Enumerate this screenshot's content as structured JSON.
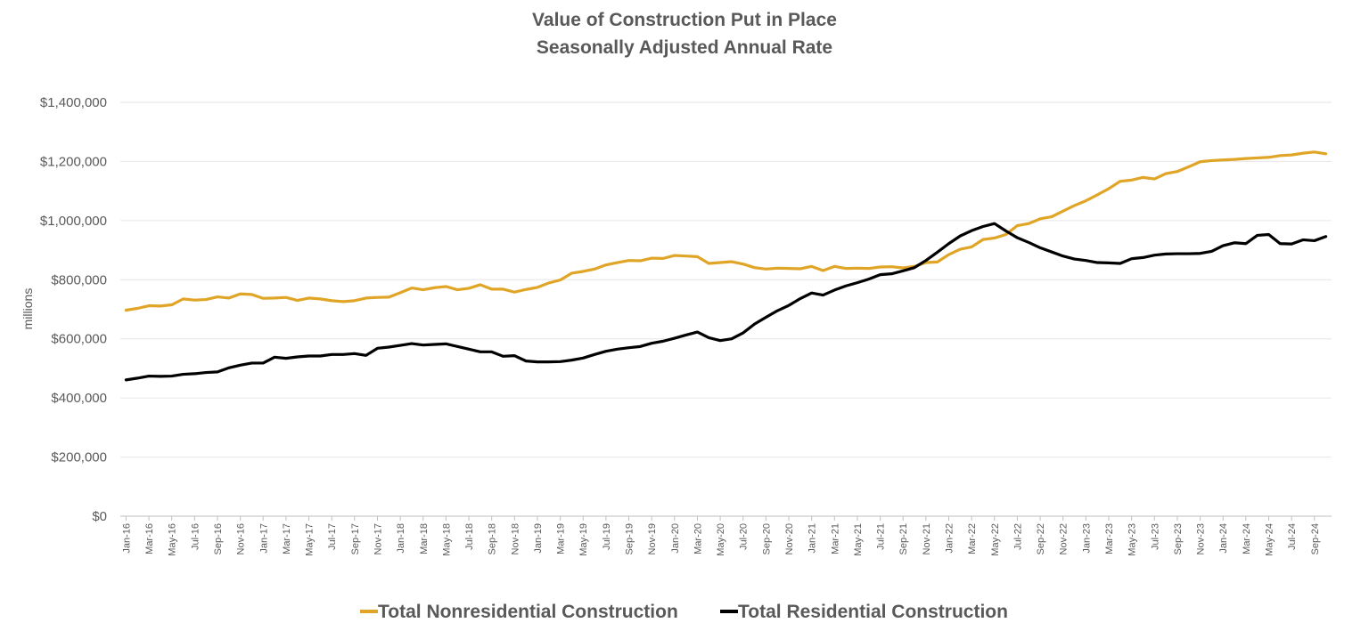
{
  "chart_data": {
    "type": "line",
    "title": "Value of Construction Put in Place",
    "subtitle": "Seasonally Adjusted Annual Rate",
    "ylabel": "millions",
    "ylim": [
      0,
      1400000
    ],
    "yticks": [
      0,
      200000,
      400000,
      600000,
      800000,
      1000000,
      1200000,
      1400000
    ],
    "ytick_labels": [
      "$0",
      "$200,000",
      "$400,000",
      "$600,000",
      "$800,000",
      "$1,000,000",
      "$1,200,000",
      "$1,400,000"
    ],
    "grid": true,
    "legend_position": "bottom",
    "x_start": "Jan-16",
    "x_tick_labels": [
      "Jan-16",
      "Mar-16",
      "May-16",
      "Jul-16",
      "Sep-16",
      "Nov-16",
      "Jan-17",
      "Mar-17",
      "May-17",
      "Jul-17",
      "Sep-17",
      "Nov-17",
      "Jan-18",
      "Mar-18",
      "May-18",
      "Jul-18",
      "Sep-18",
      "Nov-18",
      "Jan-19",
      "Mar-19",
      "May-19",
      "Jul-19",
      "Sep-19",
      "Nov-19",
      "Jan-20",
      "Mar-20",
      "May-20",
      "Jul-20",
      "Sep-20",
      "Nov-20",
      "Jan-21",
      "Mar-21",
      "May-21",
      "Jul-21",
      "Sep-21",
      "Nov-21",
      "Jan-22",
      "Mar-22",
      "May-22",
      "Jul-22",
      "Sep-22",
      "Nov-22",
      "Jan-23",
      "Mar-23",
      "May-23",
      "Jul-23",
      "Sep-23",
      "Nov-23",
      "Jan-24",
      "Mar-24",
      "May-24",
      "Jul-24",
      "Sep-24"
    ],
    "series": [
      {
        "name": "Total Nonresidential Construction",
        "color": "#E0A526",
        "values": [
          697000,
          703000,
          712000,
          711000,
          715000,
          735000,
          731000,
          733000,
          742000,
          738000,
          752000,
          750000,
          737000,
          738000,
          740000,
          730000,
          738000,
          735000,
          729000,
          726000,
          729000,
          738000,
          740000,
          741000,
          756000,
          772000,
          766000,
          773000,
          777000,
          766000,
          771000,
          783000,
          768000,
          768000,
          758000,
          767000,
          774000,
          789000,
          799000,
          822000,
          828000,
          836000,
          850000,
          858000,
          865000,
          864000,
          873000,
          872000,
          882000,
          880000,
          878000,
          855000,
          858000,
          861000,
          853000,
          841000,
          836000,
          839000,
          838000,
          837000,
          845000,
          831000,
          845000,
          838000,
          839000,
          838000,
          843000,
          844000,
          840000,
          845000,
          858000,
          860000,
          885000,
          903000,
          911000,
          936000,
          941000,
          953000,
          983000,
          990000,
          1006000,
          1013000,
          1032000,
          1051000,
          1067000,
          1087000,
          1108000,
          1133000,
          1137000,
          1146000,
          1141000,
          1159000,
          1166000,
          1182000,
          1199000,
          1203000,
          1205000,
          1207000,
          1210000,
          1212000,
          1214000,
          1220000,
          1222000,
          1228000,
          1232000,
          1226000
        ]
      },
      {
        "name": "Total Residential Construction",
        "color": "#000000",
        "values": [
          461000,
          467000,
          474000,
          473000,
          474000,
          480000,
          482000,
          486000,
          488000,
          502000,
          511000,
          518000,
          518000,
          538000,
          534000,
          539000,
          542000,
          542000,
          547000,
          547000,
          550000,
          544000,
          568000,
          572000,
          578000,
          584000,
          579000,
          581000,
          583000,
          574000,
          565000,
          556000,
          556000,
          541000,
          543000,
          525000,
          522000,
          522000,
          523000,
          528000,
          535000,
          547000,
          558000,
          565000,
          570000,
          574000,
          585000,
          592000,
          602000,
          613000,
          623000,
          604000,
          594000,
          600000,
          620000,
          650000,
          673000,
          695000,
          713000,
          736000,
          755000,
          748000,
          765000,
          779000,
          790000,
          802000,
          817000,
          820000,
          830000,
          841000,
          865000,
          893000,
          922000,
          948000,
          966000,
          980000,
          990000,
          965000,
          942000,
          926000,
          908000,
          894000,
          880000,
          870000,
          865000,
          858000,
          857000,
          855000,
          871000,
          875000,
          883000,
          887000,
          888000,
          888000,
          889000,
          896000,
          915000,
          925000,
          922000,
          950000,
          953000,
          922000,
          921000,
          935000,
          932000,
          946000
        ]
      }
    ]
  }
}
